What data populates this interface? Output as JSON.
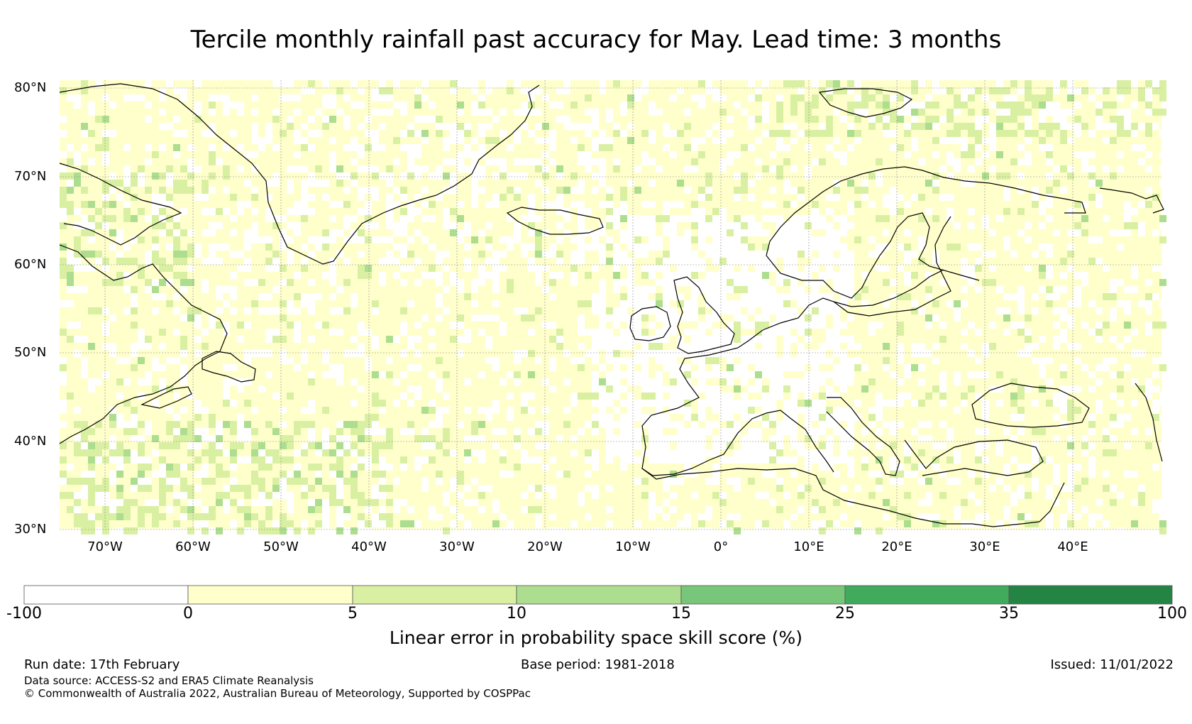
{
  "title": "Tercile monthly rainfall past accuracy for May. Lead time: 3 months",
  "map": {
    "lat_labels": [
      "80°N",
      "70°N",
      "60°N",
      "50°N",
      "40°N",
      "30°N"
    ],
    "lon_labels": [
      "70°W",
      "60°W",
      "50°W",
      "40°W",
      "30°W",
      "20°W",
      "10°W",
      "0°",
      "10°E",
      "20°E",
      "30°E",
      "40°E"
    ]
  },
  "colorbar": {
    "title": "Linear error in probability space skill score (%)",
    "ticks": [
      "-100",
      "0",
      "5",
      "10",
      "15",
      "25",
      "35",
      "100"
    ],
    "colors": [
      "#ffffff",
      "#ffffcc",
      "#d9f0a3",
      "#addd8e",
      "#78c679",
      "#41ab5d",
      "#238443"
    ]
  },
  "footer": {
    "run_date": "Run date: 17th February",
    "base_period": "Base period: 1981-2018",
    "issued": "Issued: 11/01/2022",
    "data_source": "Data source: ACCESS-S2 and ERA5 Climate Reanalysis",
    "copyright": "© Commonwealth of Australia 2022, Australian Bureau of Meteorology, Supported by COSPPac"
  }
}
